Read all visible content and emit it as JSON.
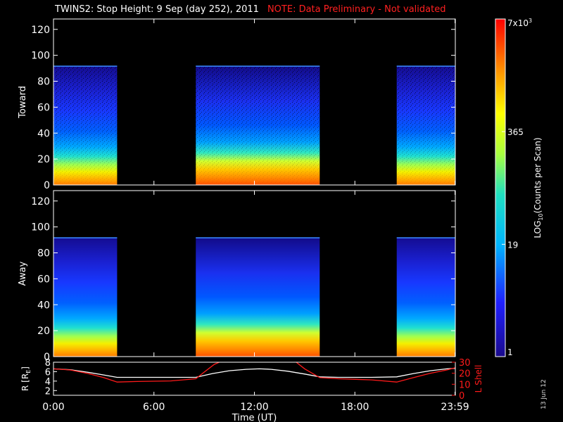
{
  "title": "TWINS2: Stop Height:  9 Sep (day 252), 2011",
  "note": "NOTE: Data Preliminary - Not validated",
  "stamp": "13 Jun 12",
  "colors": {
    "note": "#ff2020",
    "lshell": "#ff1a1a",
    "radius": "#ffffff"
  },
  "chart_data": [
    {
      "type": "heatmap",
      "panel": "Toward",
      "ylabel": "Toward",
      "ylim": [
        0,
        128
      ],
      "yticks": [
        0,
        20,
        40,
        60,
        80,
        100,
        120
      ],
      "xlim_hours": [
        0,
        24
      ],
      "data_ceiling": 92,
      "data_intervals_hours": [
        [
          0.0,
          3.8
        ],
        [
          8.5,
          15.9
        ],
        [
          20.5,
          24.0
        ]
      ]
    },
    {
      "type": "heatmap",
      "panel": "Away",
      "ylabel": "Away",
      "ylim": [
        0,
        128
      ],
      "yticks": [
        0,
        20,
        40,
        60,
        80,
        100,
        120
      ],
      "xlim_hours": [
        0,
        24
      ],
      "data_ceiling": 92,
      "data_intervals_hours": [
        [
          0.0,
          3.8
        ],
        [
          8.5,
          15.9
        ],
        [
          20.5,
          24.0
        ]
      ]
    },
    {
      "type": "line",
      "xlabel": "Time (UT)",
      "xticks": [
        "0:00",
        "6:00",
        "12:00",
        "18:00",
        "23:59"
      ],
      "xtick_hours": [
        0,
        6,
        12,
        18,
        23.98
      ],
      "left_axis": {
        "label": "R [RE]",
        "ylim": [
          1,
          8
        ],
        "ticks": [
          2,
          4,
          6,
          8
        ]
      },
      "right_axis": {
        "label": "L Shell",
        "ylim": [
          0,
          30
        ],
        "ticks": [
          0,
          10,
          20,
          30
        ]
      },
      "series": [
        {
          "name": "R [RE]",
          "axis": "left",
          "x": [
            0,
            1,
            2,
            3,
            3.8,
            5,
            7,
            8.5,
            9.5,
            10.5,
            11.5,
            12.3,
            13,
            14,
            15,
            15.9,
            17,
            19,
            20.5,
            21.5,
            22.5,
            23.5,
            24
          ],
          "y": [
            6.6,
            6.4,
            5.9,
            5.3,
            4.8,
            4.8,
            4.8,
            4.8,
            5.6,
            6.2,
            6.5,
            6.6,
            6.5,
            6.1,
            5.5,
            4.9,
            4.8,
            4.8,
            4.9,
            5.6,
            6.2,
            6.6,
            6.7
          ]
        },
        {
          "name": "L Shell",
          "axis": "right",
          "x": [
            0,
            1,
            2,
            3,
            3.8,
            5,
            7,
            8.5,
            9.0,
            9.6,
            9.9
          ],
          "y": [
            24,
            23,
            20,
            16,
            12,
            12.5,
            13,
            15,
            21,
            28,
            30
          ]
        },
        {
          "name": "L Shell (return)",
          "axis": "right",
          "x": [
            14.5,
            15.0,
            15.9,
            17,
            19,
            20.5,
            21.5,
            22.5,
            23.5,
            24
          ],
          "y": [
            30,
            24,
            16,
            15,
            14,
            12,
            16,
            20,
            23,
            25
          ]
        }
      ]
    }
  ],
  "colorbar": {
    "label": "LOG10(Counts per Scan)",
    "tick_labels": [
      "7x10^3",
      "365",
      "19",
      "1"
    ],
    "tick_values": [
      7000,
      365,
      19,
      1
    ],
    "scale": "log"
  }
}
